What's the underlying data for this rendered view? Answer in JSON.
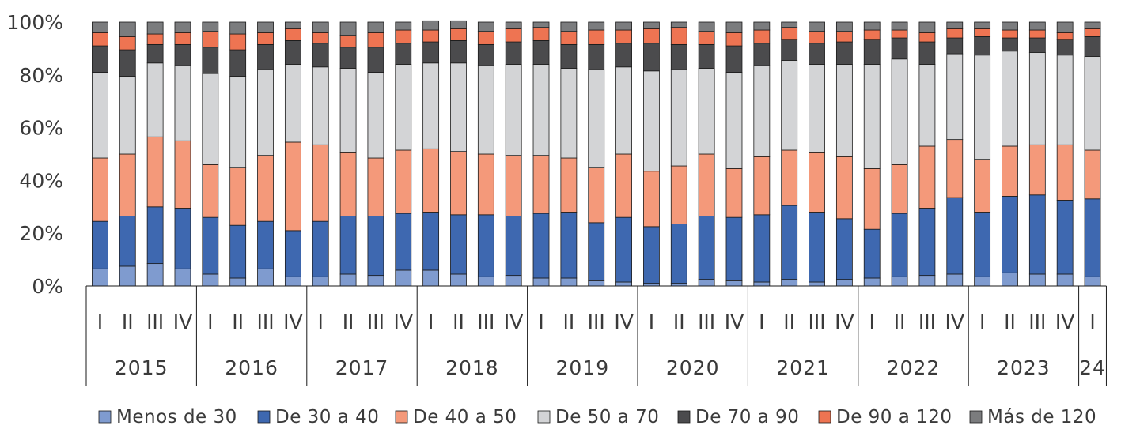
{
  "chart_data": {
    "type": "bar",
    "stacked": true,
    "percent": true,
    "ylim": [
      0,
      100
    ],
    "y_ticks": [
      "0%",
      "20%",
      "40%",
      "60%",
      "80%",
      "100%"
    ],
    "y_tick_values": [
      0,
      20,
      40,
      60,
      80,
      100
    ],
    "quarters": [
      "I",
      "II",
      "III",
      "IV",
      "I",
      "II",
      "III",
      "IV",
      "I",
      "II",
      "III",
      "IV",
      "I",
      "II",
      "III",
      "IV",
      "I",
      "II",
      "III",
      "IV",
      "I",
      "II",
      "III",
      "IV",
      "I",
      "II",
      "III",
      "IV",
      "I",
      "II",
      "III",
      "IV",
      "I",
      "II",
      "III",
      "IV",
      "I"
    ],
    "years": [
      {
        "label": "2015",
        "count": 4
      },
      {
        "label": "2016",
        "count": 4
      },
      {
        "label": "2017",
        "count": 4
      },
      {
        "label": "2018",
        "count": 4
      },
      {
        "label": "2019",
        "count": 4
      },
      {
        "label": "2020",
        "count": 4
      },
      {
        "label": "2021",
        "count": 4
      },
      {
        "label": "2022",
        "count": 4
      },
      {
        "label": "2023",
        "count": 4
      },
      {
        "label": "24",
        "count": 1
      }
    ],
    "legend_position": "bottom",
    "series": [
      {
        "name": "Menos de 30",
        "color": "#7f9bcf",
        "values": [
          6.5,
          7.5,
          8.5,
          6.5,
          4.5,
          3,
          6.5,
          3.5,
          3.5,
          4.5,
          4,
          6,
          6,
          4.5,
          3.5,
          4,
          3,
          3,
          2,
          1.5,
          1,
          1,
          2.5,
          2,
          1.5,
          2.5,
          1.5,
          2.5,
          3,
          3.5,
          4,
          4.5,
          3.5,
          5,
          4.5,
          4.5,
          3.5
        ]
      },
      {
        "name": "De 30 a 40",
        "color": "#3e68b0",
        "values": [
          18,
          19,
          21.5,
          23,
          21.5,
          20,
          18,
          17.5,
          21,
          22,
          22.5,
          21.5,
          22,
          22.5,
          23.5,
          22.5,
          24.5,
          25,
          22,
          24.5,
          21.5,
          22.5,
          24,
          24,
          25.5,
          28,
          26.5,
          23,
          18.5,
          24,
          25.5,
          29,
          24.5,
          29,
          30,
          28,
          29.5
        ]
      },
      {
        "name": "De 40 a 50",
        "color": "#f4997a",
        "values": [
          24,
          23.5,
          26.5,
          25.5,
          20,
          22,
          25,
          33.5,
          29,
          24,
          22,
          24,
          24,
          24,
          23,
          23,
          22,
          20.5,
          21,
          24,
          21,
          22,
          23.5,
          18.5,
          22,
          21,
          22.5,
          23.5,
          23,
          18.5,
          23.5,
          22,
          20,
          19,
          19,
          21,
          18.5
        ]
      },
      {
        "name": "De 50 a 70",
        "color": "#d3d4d6",
        "values": [
          32.5,
          29.5,
          28,
          28.5,
          34.5,
          34.5,
          32.5,
          29.5,
          29.5,
          32,
          32.5,
          32.5,
          32.5,
          33.5,
          33.5,
          34.5,
          34.5,
          34,
          37,
          33,
          38,
          36.5,
          32.5,
          36.5,
          34.5,
          34,
          33.5,
          35,
          39.5,
          40,
          31,
          32.5,
          39.5,
          36,
          35,
          34,
          35.5
        ]
      },
      {
        "name": "De 70 a 90",
        "color": "#4b4b4d",
        "values": [
          10,
          10,
          7,
          8,
          10,
          10,
          9.5,
          9,
          9,
          8,
          9.5,
          8,
          8,
          8.5,
          8,
          8.5,
          9,
          9,
          9.5,
          9,
          10.5,
          9.5,
          9,
          10,
          8.5,
          8,
          8,
          8.5,
          9.5,
          8,
          8.5,
          6,
          7,
          5,
          5.5,
          6,
          7.5
        ]
      },
      {
        "name": "De 90 a 120",
        "color": "#ee7452",
        "values": [
          5,
          5,
          4,
          4.5,
          6,
          6,
          4.5,
          4.5,
          4,
          4.5,
          5.5,
          5,
          4.5,
          4.5,
          5,
          5,
          5,
          5,
          5.5,
          5,
          5.5,
          6.5,
          5,
          5,
          5,
          4.5,
          4.5,
          4,
          3.5,
          3,
          3.5,
          3.5,
          3,
          3,
          3,
          2.5,
          3
        ]
      },
      {
        "name": "Más de 120",
        "color": "#7b7c7e",
        "values": [
          4,
          5.5,
          4.5,
          4,
          3.5,
          4.5,
          4,
          2.5,
          4,
          5,
          4,
          3,
          3.5,
          3,
          3.5,
          2.5,
          2,
          3.5,
          3,
          3,
          2.5,
          2,
          3.5,
          4,
          3,
          2,
          3.5,
          3.5,
          3,
          3,
          4,
          2.5,
          2.5,
          3,
          3,
          4,
          2.5
        ]
      }
    ]
  }
}
